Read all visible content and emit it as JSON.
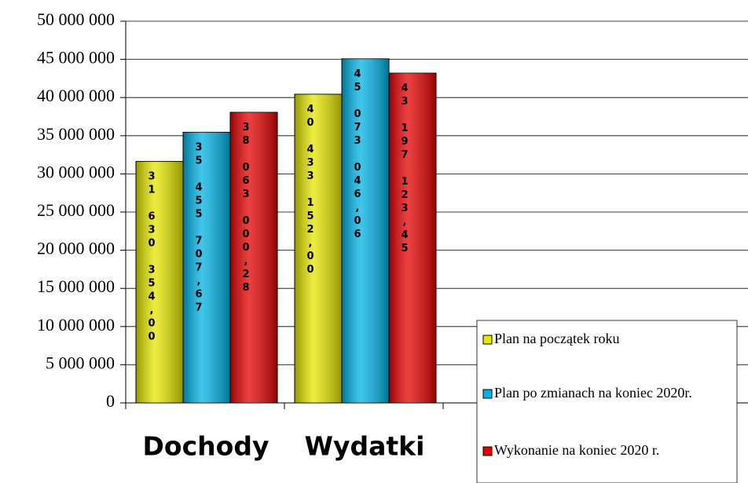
{
  "chart_data": {
    "type": "bar",
    "categories": [
      "Dochody",
      "Wydatki"
    ],
    "series": [
      {
        "name": "Plan na początek roku",
        "color": "#e6e600",
        "values": [
          31630354.0,
          40433152.0
        ],
        "value_labels": [
          "31 630 354,00",
          "40 433 152,00"
        ]
      },
      {
        "name": "Plan po zmianach na koniec 2020r.",
        "color": "#00b4e6",
        "values": [
          35455707.67,
          45073046.06
        ],
        "value_labels": [
          "35 455 707,67",
          "45 073 046,06"
        ]
      },
      {
        "name": "Wykonanie na koniec 2020 r.",
        "color": "#e60000",
        "values": [
          38063000.28,
          43197123.45
        ],
        "value_labels": [
          "38 063 000,28",
          "43 197 123,45"
        ]
      }
    ],
    "ylim": [
      0,
      50000000
    ],
    "yticks": [
      {
        "value": 0,
        "label": "0"
      },
      {
        "value": 5000000,
        "label": "5 000 000"
      },
      {
        "value": 10000000,
        "label": "10 000 000"
      },
      {
        "value": 15000000,
        "label": "15 000 000"
      },
      {
        "value": 20000000,
        "label": "20 000 000"
      },
      {
        "value": 25000000,
        "label": "25 000 000"
      },
      {
        "value": 30000000,
        "label": "30 000 000"
      },
      {
        "value": 35000000,
        "label": "35 000 000"
      },
      {
        "value": 40000000,
        "label": "40 000 000"
      },
      {
        "value": 45000000,
        "label": "45 000 000"
      },
      {
        "value": 50000000,
        "label": "50 000 000"
      }
    ],
    "grid": true,
    "legend": "lower right"
  }
}
